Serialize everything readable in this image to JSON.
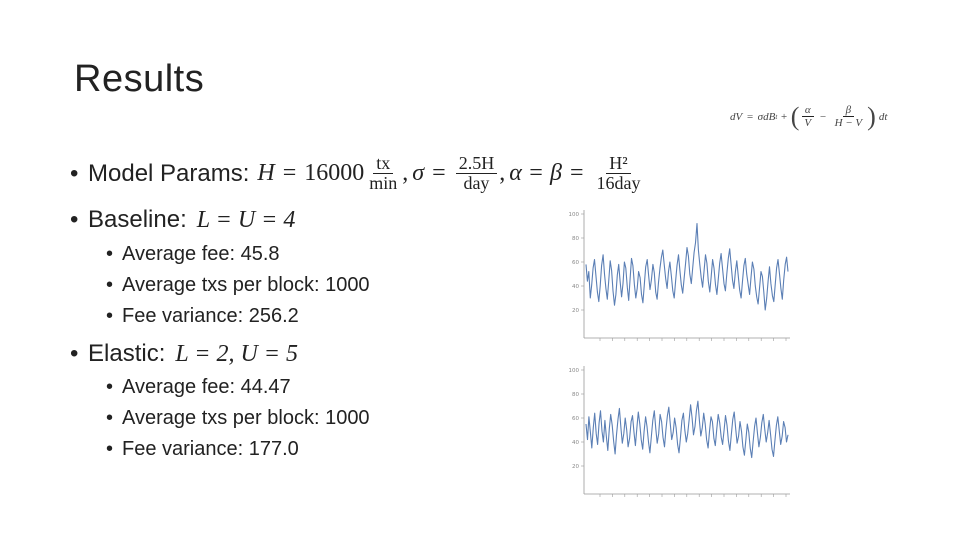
{
  "slide": {
    "title": "Results",
    "formula": {
      "lhs": "dV",
      "eq": "=",
      "term1": "σdB",
      "term1_sub": "t",
      "plus": "+",
      "lparen": "(",
      "a_num": "α",
      "a_den": "V",
      "minus": "−",
      "b_num": "β",
      "b_den": "H − V",
      "rparen": ")",
      "dt": "dt"
    },
    "bullets": [
      {
        "bullet": "•",
        "label": "Model Params:",
        "math": {
          "h": "H",
          "eq1": "=",
          "val": "16000",
          "f1_num": "tx",
          "f1_den": "min",
          "comma1": ",",
          "sigma": "σ",
          "eq2": "=",
          "f2_num": "2.5H",
          "f2_den": "day",
          "comma2": ",",
          "ab": "α = β",
          "eq3": "=",
          "f3_num": "H²",
          "f3_den": "16day"
        }
      },
      {
        "bullet": "•",
        "label": "Baseline:",
        "math": "L = U = 4",
        "sub": [
          {
            "bullet": "•",
            "text": "Average fee: 45.8"
          },
          {
            "bullet": "•",
            "text": "Average txs per block: 1000"
          },
          {
            "bullet": "•",
            "text": "Fee variance: 256.2"
          }
        ]
      },
      {
        "bullet": "•",
        "label": "Elastic:",
        "math": "L = 2, U = 5",
        "sub": [
          {
            "bullet": "•",
            "text": "Average fee: 44.47"
          },
          {
            "bullet": "•",
            "text": "Average txs per block: 1000"
          },
          {
            "bullet": "•",
            "text": "Fee variance: 177.0"
          }
        ]
      }
    ]
  },
  "chart_data": [
    {
      "type": "line",
      "title": "",
      "xlabel": "",
      "ylabel": "",
      "ylim": [
        0,
        100
      ],
      "yticks": [
        "100",
        "80",
        "60",
        "40",
        "20"
      ],
      "color": "#5b7fb5",
      "series": [
        {
          "values": [
            58,
            44,
            52,
            30,
            41,
            55,
            62,
            48,
            35,
            27,
            40,
            57,
            66,
            50,
            38,
            29,
            45,
            61,
            53,
            36,
            24,
            33,
            49,
            58,
            44,
            31,
            42,
            60,
            55,
            39,
            28,
            46,
            63,
            57,
            41,
            30,
            38,
            52,
            47,
            33,
            26,
            41,
            56,
            62,
            49,
            37,
            45,
            58,
            51,
            35,
            29,
            43,
            55,
            64,
            70,
            58,
            46,
            38,
            52,
            60,
            48,
            36,
            30,
            44,
            57,
            66,
            53,
            41,
            34,
            47,
            59,
            72,
            65,
            50,
            42,
            55,
            68,
            76,
            92,
            70,
            58,
            47,
            39,
            53,
            66,
            59,
            44,
            35,
            48,
            62,
            55,
            41,
            33,
            46,
            59,
            67,
            54,
            42,
            36,
            50,
            63,
            71,
            58,
            45,
            38,
            52,
            61,
            49,
            37,
            30,
            44,
            57,
            63,
            50,
            41,
            33,
            47,
            60,
            54,
            40,
            31,
            25,
            38,
            52,
            48,
            35,
            20,
            30,
            44,
            56,
            42,
            32,
            27,
            41,
            55,
            62,
            50,
            38,
            29,
            45,
            58,
            64,
            52
          ]
        }
      ]
    },
    {
      "type": "line",
      "title": "",
      "xlabel": "",
      "ylabel": "",
      "ylim": [
        0,
        100
      ],
      "yticks": [
        "100",
        "80",
        "60",
        "40",
        "20"
      ],
      "color": "#5b7fb5",
      "series": [
        {
          "values": [
            55,
            42,
            61,
            48,
            35,
            52,
            64,
            47,
            38,
            56,
            66,
            49,
            40,
            58,
            45,
            33,
            51,
            63,
            54,
            41,
            30,
            46,
            59,
            68,
            52,
            39,
            47,
            60,
            50,
            36,
            43,
            57,
            62,
            48,
            37,
            52,
            65,
            55,
            42,
            34,
            49,
            61,
            53,
            40,
            31,
            45,
            58,
            66,
            51,
            39,
            47,
            63,
            57,
            44,
            36,
            50,
            62,
            69,
            55,
            42,
            48,
            60,
            52,
            38,
            31,
            44,
            58,
            64,
            50,
            40,
            47,
            59,
            71,
            60,
            46,
            53,
            66,
            74,
            58,
            45,
            52,
            64,
            55,
            42,
            35,
            49,
            61,
            57,
            43,
            37,
            51,
            63,
            56,
            44,
            38,
            50,
            62,
            54,
            41,
            33,
            46,
            59,
            65,
            51,
            39,
            45,
            57,
            49,
            36,
            29,
            42,
            55,
            48,
            35,
            27,
            40,
            53,
            60,
            47,
            36,
            44,
            56,
            63,
            51,
            40,
            48,
            58,
            46,
            34,
            28,
            41,
            54,
            61,
            49,
            38,
            45,
            57,
            52,
            40,
            46
          ]
        }
      ]
    }
  ]
}
